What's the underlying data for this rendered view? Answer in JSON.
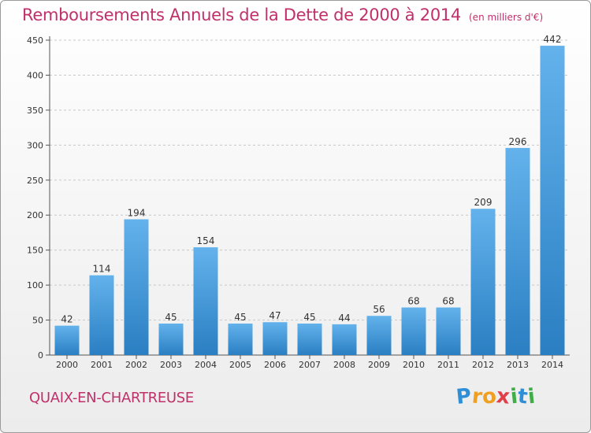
{
  "title": "Remboursements Annuels de la Dette de 2000 à 2014",
  "unit_note": "(en milliers d'€)",
  "city": "QUAIX-EN-CHARTREUSE",
  "logo": {
    "text": "Proxiti",
    "letters": [
      {
        "ch": "P",
        "color": "#2f8fd6"
      },
      {
        "ch": "r",
        "color": "#f0a020"
      },
      {
        "ch": "o",
        "color": "#f0a020"
      },
      {
        "ch": "x",
        "color": "#e0404a"
      },
      {
        "ch": "i",
        "color": "#3fae49"
      },
      {
        "ch": "t",
        "color": "#2f8fd6"
      },
      {
        "ch": "i",
        "color": "#3fae49"
      }
    ]
  },
  "colors": {
    "title": "#c0306a",
    "bar_top": "#63b2ec",
    "bar_bottom": "#2a7fc2",
    "grid": "#c8c8c8",
    "axis_text": "#333333"
  },
  "chart_data": {
    "type": "bar",
    "title": "Remboursements Annuels de la Dette de 2000 à 2014",
    "ylabel": "en milliers d'€",
    "xlabel": "",
    "categories": [
      "2000",
      "2001",
      "2002",
      "2003",
      "2004",
      "2005",
      "2006",
      "2007",
      "2008",
      "2009",
      "2010",
      "2011",
      "2012",
      "2013",
      "2014"
    ],
    "values": [
      42,
      114,
      194,
      45,
      154,
      45,
      47,
      45,
      44,
      56,
      68,
      68,
      209,
      296,
      442
    ],
    "ylim": [
      0,
      450
    ],
    "yticks": [
      0,
      50,
      100,
      150,
      200,
      250,
      300,
      350,
      400,
      450
    ],
    "grid": true,
    "data_labels": true
  }
}
